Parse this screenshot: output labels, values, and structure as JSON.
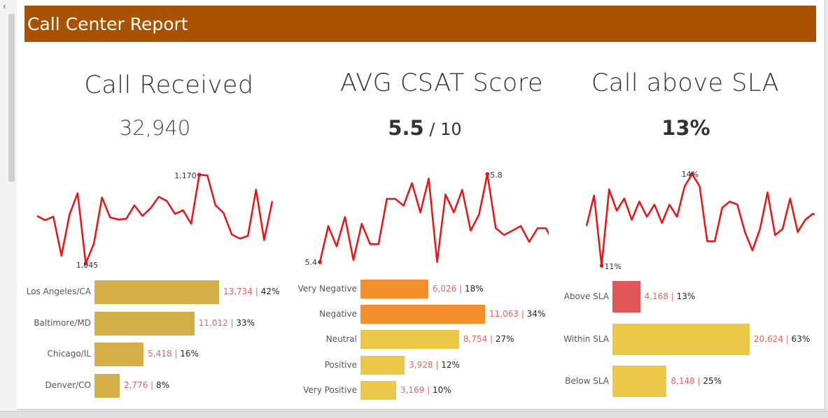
{
  "header": {
    "title": "Call Center Report",
    "bg": "#A85200"
  },
  "kpis": [
    {
      "title": "Call Received",
      "value": "32,940",
      "value_suffix": ""
    },
    {
      "title": "AVG CSAT Score",
      "value": "5.5",
      "value_suffix": " / 10"
    },
    {
      "title": "Call above SLA",
      "value": "13%",
      "value_suffix": ""
    }
  ],
  "chart_data": [
    {
      "type": "line",
      "title": "",
      "series": [
        {
          "values": [
            1112,
            1106,
            1111,
            1056,
            1114,
            1144,
            1045,
            1073,
            1138,
            1110,
            1107,
            1108,
            1127,
            1112,
            1123,
            1139,
            1133,
            1115,
            1120,
            1101,
            1170,
            1169,
            1127,
            1116,
            1086,
            1080,
            1084,
            1149,
            1078,
            1133
          ]
        }
      ],
      "annotations": {
        "max_label": "1,170",
        "min_label": "1,045"
      },
      "color": "#EE1111"
    },
    {
      "type": "line",
      "title": "",
      "series": [
        {
          "values": [
            5.41,
            5.57,
            5.48,
            5.61,
            5.42,
            5.58,
            5.49,
            5.49,
            5.69,
            5.69,
            5.66,
            5.76,
            5.63,
            5.78,
            5.41,
            5.71,
            5.63,
            5.73,
            5.55,
            5.62,
            5.8,
            5.56,
            5.53,
            5.55,
            5.57,
            5.5,
            5.56,
            5.56,
            5.49
          ]
        }
      ],
      "annotations": {
        "max_label": "5.8",
        "min_label": "5.4"
      },
      "color": "#EE1111"
    },
    {
      "type": "line",
      "title": "",
      "series": [
        {
          "values": [
            12.3,
            13.3,
            11.0,
            13.5,
            12.8,
            13.2,
            12.5,
            13.1,
            12.6,
            13.0,
            12.4,
            13.0,
            12.6,
            13.6,
            14.0,
            13.6,
            11.8,
            11.8,
            12.9,
            13.1,
            13.0,
            12.1,
            11.5,
            12.2,
            13.4,
            12.0,
            12.2,
            13.2,
            12.1,
            12.5,
            12.7,
            12.6
          ]
        }
      ],
      "annotations": {
        "max_label": "14%",
        "min_label": "11%"
      },
      "color": "#EE1111"
    },
    {
      "type": "bar",
      "title": "",
      "categories": [
        "Los Angeles/CA",
        "Baltimore/MD",
        "Chicago/IL",
        "Denver/CO"
      ],
      "values": [
        13734,
        11012,
        5418,
        2776
      ],
      "value_labels": [
        "13,734",
        "11,012",
        "5,418",
        "2,776"
      ],
      "pct_labels": [
        "42%",
        "33%",
        "16%",
        "8%"
      ],
      "colors": [
        "#D4AF48",
        "#D4AF48",
        "#D4AF48",
        "#D4AF48"
      ]
    },
    {
      "type": "bar",
      "title": "",
      "categories": [
        "Very Negative",
        "Negative",
        "Neutral",
        "Positive",
        "Very Positive"
      ],
      "values": [
        6026,
        11063,
        8754,
        3928,
        3169
      ],
      "value_labels": [
        "6,026",
        "11,063",
        "8,754",
        "3,928",
        "3,169"
      ],
      "pct_labels": [
        "18%",
        "34%",
        "27%",
        "12%",
        "10%"
      ],
      "colors": [
        "#F28E2B",
        "#F28E2B",
        "#EBC848",
        "#EBC848",
        "#EBC848"
      ]
    },
    {
      "type": "bar",
      "title": "",
      "categories": [
        "Above SLA",
        "Within SLA",
        "Below SLA"
      ],
      "values": [
        4168,
        20624,
        8148
      ],
      "value_labels": [
        "4,168",
        "20,624",
        "8,148"
      ],
      "pct_labels": [
        "13%",
        "63%",
        "25%"
      ],
      "colors": [
        "#E15759",
        "#EBC848",
        "#EBC848"
      ]
    }
  ]
}
